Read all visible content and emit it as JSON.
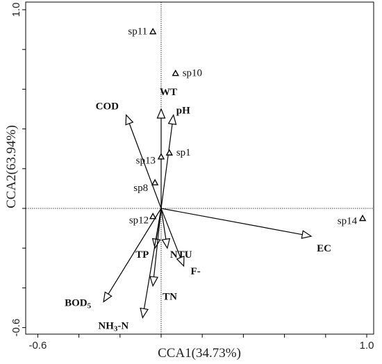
{
  "chart_data": {
    "type": "scatter",
    "subtype": "cca-biplot",
    "xlabel": "CCA1(34.73%)",
    "ylabel": "CCA2(63.94%)",
    "xlim": [
      -0.67,
      1.02
    ],
    "ylim": [
      -0.65,
      1.02
    ],
    "x_ticks": [
      {
        "value": -0.6,
        "label": "-0.6"
      },
      {
        "value": 1.0,
        "label": "1.0"
      }
    ],
    "y_ticks": [
      {
        "value": 1.0,
        "label": "1.0"
      },
      {
        "value": -0.6,
        "label": "-0.6"
      }
    ],
    "zero_lines": true,
    "environmental_factors": [
      {
        "name": "WT",
        "x": 0.0,
        "y": 0.5
      },
      {
        "name": "pH",
        "x": 0.06,
        "y": 0.47
      },
      {
        "name": "COD",
        "x": -0.17,
        "y": 0.47
      },
      {
        "name": "EC",
        "x": 0.73,
        "y": -0.14
      },
      {
        "name": "TP",
        "x": -0.03,
        "y": -0.2
      },
      {
        "name": "NTU",
        "x": 0.03,
        "y": -0.2
      },
      {
        "name": "F-",
        "x": 0.11,
        "y": -0.29
      },
      {
        "name": "TN",
        "x": -0.04,
        "y": -0.39
      },
      {
        "name": "BOD5",
        "x": -0.28,
        "y": -0.47
      },
      {
        "name": "NH3-N",
        "x": -0.09,
        "y": -0.55
      }
    ],
    "species": [
      {
        "name": "sp11",
        "x": -0.04,
        "y": 0.89
      },
      {
        "name": "sp10",
        "x": 0.07,
        "y": 0.68
      },
      {
        "name": "sp1",
        "x": 0.04,
        "y": 0.28
      },
      {
        "name": "sp13",
        "x": 0.0,
        "y": 0.26
      },
      {
        "name": "sp8",
        "x": -0.03,
        "y": 0.13
      },
      {
        "name": "sp12",
        "x": -0.04,
        "y": -0.04
      },
      {
        "name": "sp14",
        "x": 0.98,
        "y": -0.05
      }
    ]
  }
}
